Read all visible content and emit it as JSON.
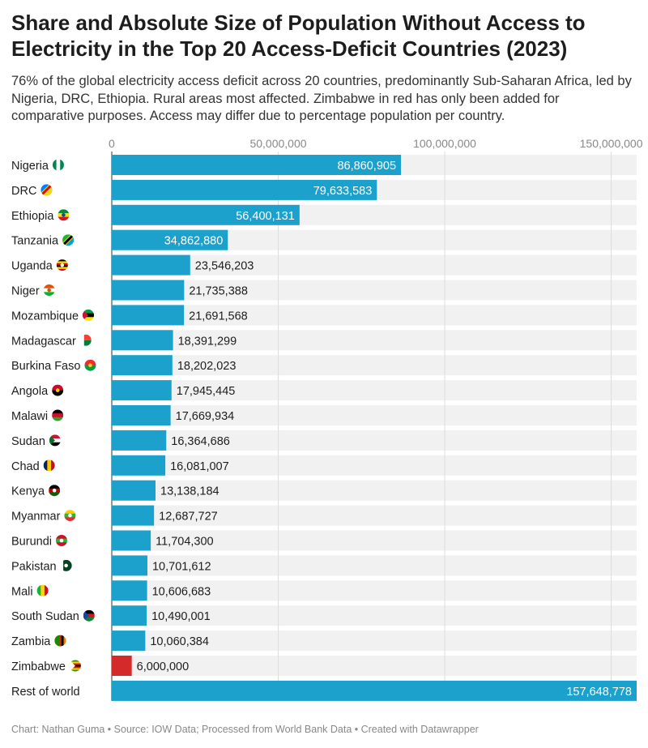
{
  "title": "Share and Absolute Size of Population Without Access to Electricity in the Top 20 Access-Deficit Countries (2023)",
  "subtitle": "76% of the global electricity access deficit across 20 countries, predominantly Sub-Saharan Africa, led by Nigeria, DRC, Ethiopia. Rural areas most affected. Zimbabwe in red has only been added for comparative purposes. Access may differ due to percentage population per country.",
  "footer": "Chart: Nathan Guma • Source: IOW Data; Processed from World Bank Data • Created with Datawrapper",
  "colors": {
    "bar": "#1ba1cc",
    "highlight": "#d42a2a",
    "track": "#f1f1f1",
    "grid": "#dddddd"
  },
  "chart_data": {
    "type": "bar",
    "orientation": "horizontal",
    "title": "Share and Absolute Size of Population Without Access to Electricity in the Top 20 Access-Deficit Countries (2023)",
    "xlim": [
      0,
      157648778
    ],
    "xticks": [
      0,
      50000000,
      100000000,
      150000000
    ],
    "xtick_labels": [
      "0",
      "50,000,000",
      "100,000,000",
      "150,000,000"
    ],
    "grid": true,
    "categories": [
      "Nigeria",
      "DRC",
      "Ethiopia",
      "Tanzania",
      "Uganda",
      "Niger",
      "Mozambique",
      "Madagascar",
      "Burkina Faso",
      "Angola",
      "Malawi",
      "Sudan",
      "Chad",
      "Kenya",
      "Myanmar",
      "Burundi",
      "Pakistan",
      "Mali",
      "South Sudan",
      "Zambia",
      "Zimbabwe",
      "Rest of world"
    ],
    "values": [
      86860905,
      79633583,
      56400131,
      34862880,
      23546203,
      21735388,
      21691568,
      18391299,
      18202023,
      17945445,
      17669934,
      16364686,
      16081007,
      13138184,
      12687727,
      11704300,
      10701612,
      10606683,
      10490001,
      10060384,
      6000000,
      157648778
    ],
    "value_labels": [
      "86,860,905",
      "79,633,583",
      "56,400,131",
      "34,862,880",
      "23,546,203",
      "21,735,388",
      "21,691,568",
      "18,391,299",
      "18,202,023",
      "17,945,445",
      "17,669,934",
      "16,364,686",
      "16,081,007",
      "13,138,184",
      "12,687,727",
      "11,704,300",
      "10,701,612",
      "10,606,683",
      "10,490,001",
      "10,060,384",
      "6,000,000",
      "157,648,778"
    ],
    "flag_icons": [
      "nigeria-flag-icon",
      "drc-flag-icon",
      "ethiopia-flag-icon",
      "tanzania-flag-icon",
      "uganda-flag-icon",
      "niger-flag-icon",
      "mozambique-flag-icon",
      "madagascar-flag-icon",
      "burkina-faso-flag-icon",
      "angola-flag-icon",
      "malawi-flag-icon",
      "sudan-flag-icon",
      "chad-flag-icon",
      "kenya-flag-icon",
      "myanmar-flag-icon",
      "burundi-flag-icon",
      "pakistan-flag-icon",
      "mali-flag-icon",
      "south-sudan-flag-icon",
      "zambia-flag-icon",
      "zimbabwe-flag-icon",
      ""
    ],
    "highlight": "Zimbabwe"
  }
}
